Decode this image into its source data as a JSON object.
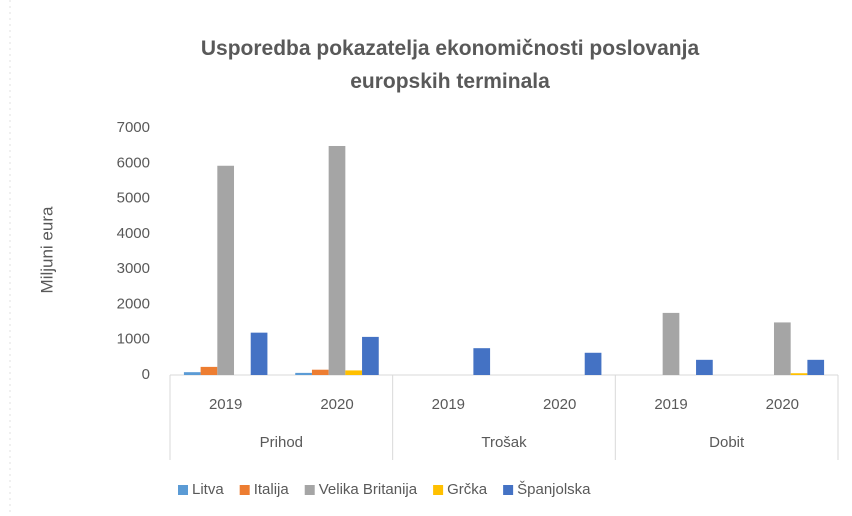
{
  "chart_data": {
    "type": "bar",
    "title": "Usporedba pokazatelja ekonomičnosti poslovanja europskih terminala",
    "y_label": "Miljuni eura",
    "categories": [
      "2019",
      "2020",
      "2019",
      "2020",
      "2019",
      "2020"
    ],
    "groups": [
      "Prihod",
      "Trošak",
      "Dobit"
    ],
    "series": [
      {
        "name": "Litva",
        "color": "#5b9bd5",
        "values": [
          80,
          60,
          0,
          0,
          0,
          0
        ]
      },
      {
        "name": "Italija",
        "color": "#ed7d31",
        "values": [
          230,
          150,
          0,
          0,
          0,
          0
        ]
      },
      {
        "name": "Velika Britanija",
        "color": "#a5a5a5",
        "values": [
          5930,
          6490,
          0,
          0,
          1760,
          1490
        ]
      },
      {
        "name": "Grčka",
        "color": "#ffc000",
        "values": [
          0,
          130,
          0,
          0,
          0,
          50
        ]
      },
      {
        "name": "Španjolska",
        "color": "#4472c4",
        "values": [
          1200,
          1080,
          760,
          630,
          430,
          430
        ]
      }
    ],
    "ylim": [
      0,
      7000
    ],
    "yticks": [
      0,
      1000,
      2000,
      3000,
      4000,
      5000,
      6000,
      7000
    ],
    "grid": false,
    "legend": "bottom"
  }
}
